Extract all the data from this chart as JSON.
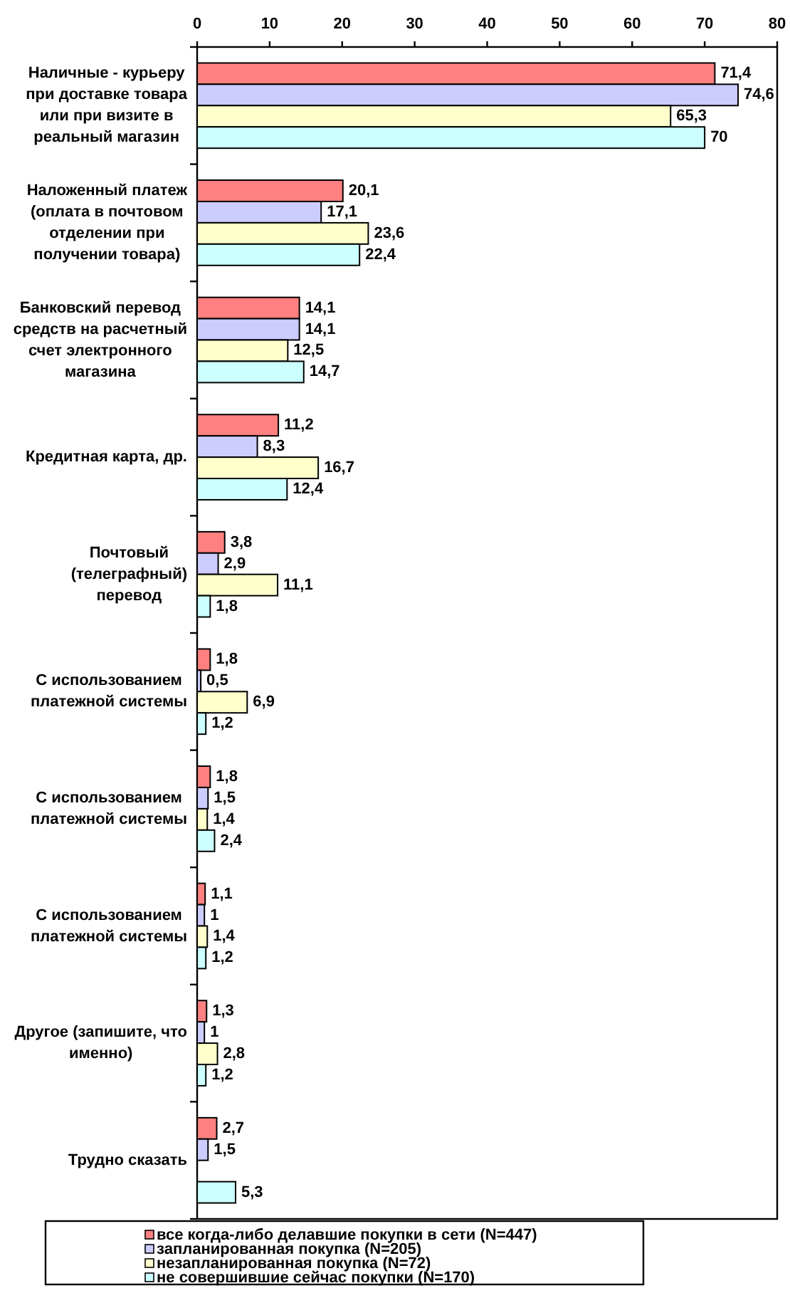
{
  "chart_data": {
    "type": "bar",
    "orientation": "horizontal",
    "categories": [
      "Наличные - курьеру при доставке товара или при визите в реальный магазин",
      "Наложенный платеж (оплата в почтовом отделении при получении товара)",
      "Банковский перевод средств на расчетный счет электронного магазина",
      "Кредитная карта, др.",
      "Почтовый (телеграфный) перевод",
      "С использованием платежной системы",
      "С использованием платежной системы",
      "С использованием платежной системы",
      "Другое (запишите, что именно)",
      "Трудно сказать"
    ],
    "series": [
      {
        "name": "все когда-либо делавшие покупки в сети (N=447)",
        "color": "#ff8080",
        "values": [
          71.4,
          20.1,
          14.1,
          11.2,
          3.8,
          1.8,
          1.8,
          1.1,
          1.3,
          2.7
        ],
        "value_labels": [
          "71,4",
          "20,1",
          "14,1",
          "11,2",
          "3,8",
          "1,8",
          "1,8",
          "1,1",
          "1,3",
          "2,7"
        ]
      },
      {
        "name": "запланированная покупка (N=205)",
        "color": "#ccccff",
        "values": [
          74.6,
          17.1,
          14.1,
          8.3,
          2.9,
          0.5,
          1.5,
          1,
          1,
          1.5
        ],
        "value_labels": [
          "74,6",
          "17,1",
          "14,1",
          "8,3",
          "2,9",
          "0,5",
          "1,5",
          "1",
          "1",
          "1,5"
        ]
      },
      {
        "name": "незапланированная покупка (N=72)",
        "color": "#ffffcc",
        "values": [
          65.3,
          23.6,
          12.5,
          16.7,
          11.1,
          6.9,
          1.4,
          1.4,
          2.8,
          null
        ],
        "value_labels": [
          "65,3",
          "23,6",
          "12,5",
          "16,7",
          "11,1",
          "6,9",
          "1,4",
          "1,4",
          "2,8",
          null
        ]
      },
      {
        "name": "не совершившие сейчас покупки (N=170)",
        "color": "#ccffff",
        "values": [
          70,
          22.4,
          14.7,
          12.4,
          1.8,
          1.2,
          2.4,
          1.2,
          1.2,
          5.3
        ],
        "value_labels": [
          "70",
          "22,4",
          "14,7",
          "12,4",
          "1,8",
          "1,2",
          "2,4",
          "1,2",
          "1,2",
          "5,3"
        ]
      }
    ],
    "xlim": [
      0,
      80
    ],
    "xticks": [
      0,
      10,
      20,
      30,
      40,
      50,
      60,
      70,
      80
    ],
    "legend": "bottom"
  }
}
